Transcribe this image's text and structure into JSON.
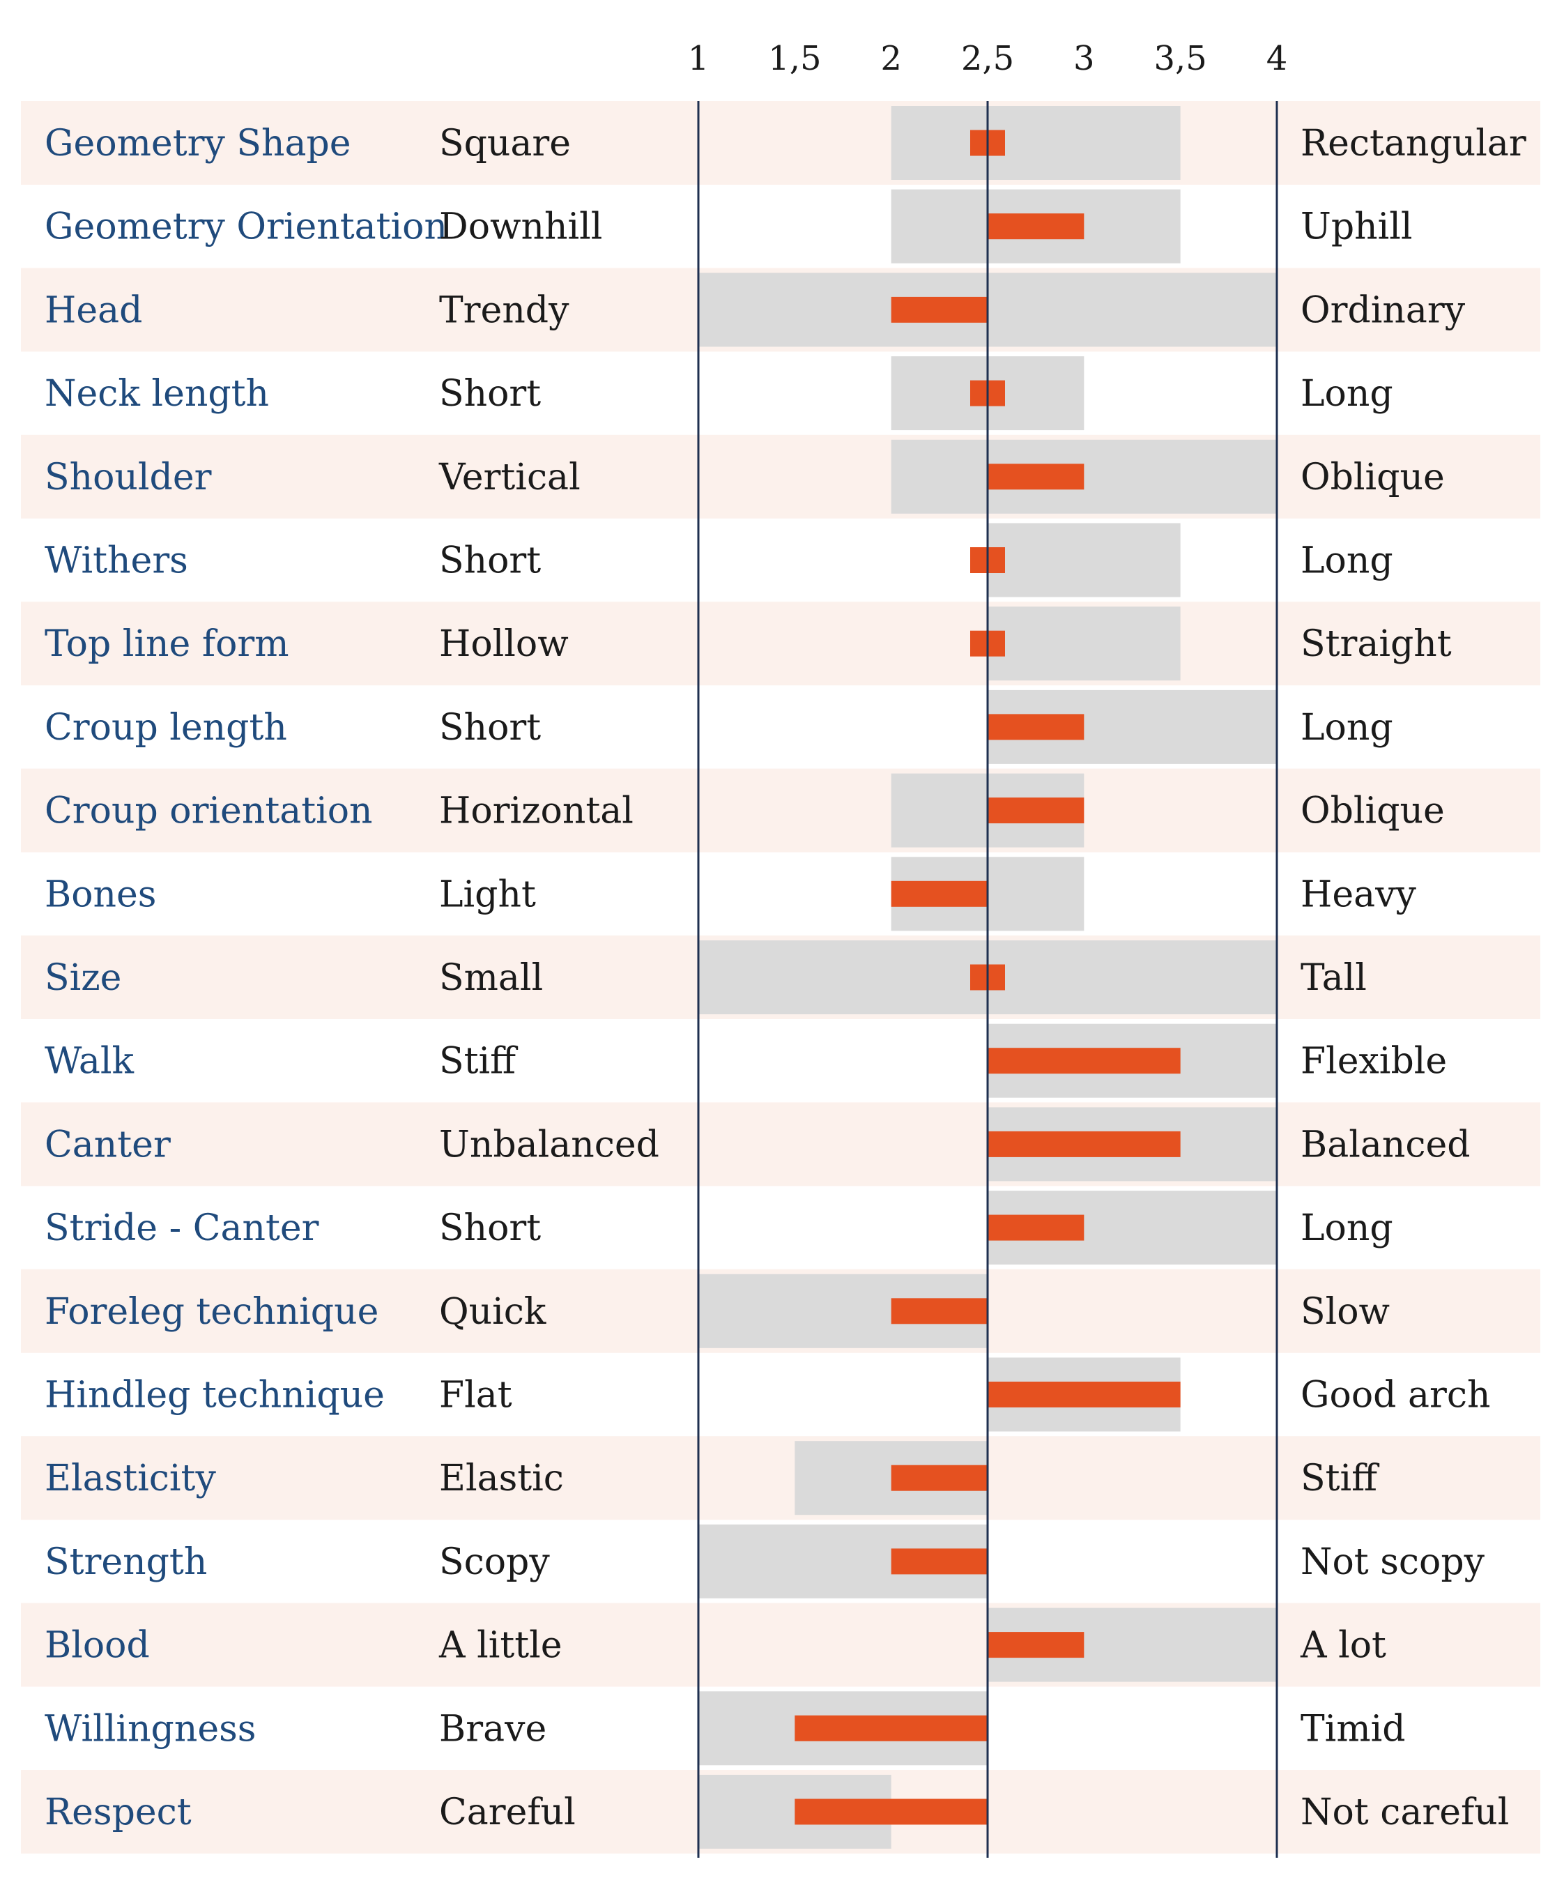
{
  "chart_data": {
    "type": "bar",
    "x_ticks": [
      "1",
      "1,5",
      "2",
      "2,5",
      "3",
      "3,5",
      "4"
    ],
    "xlim": [
      1,
      4
    ],
    "reference_value": 2.5,
    "grid": false,
    "colors": {
      "band_alt": "#fcf1ec",
      "range": "#dadada",
      "value_bar": "#e55120",
      "axis_line": "#1f3050",
      "trait_text": "#1f4a7c",
      "pole_text": "#1a1a1a"
    },
    "rows": [
      {
        "trait": "Geometry Shape",
        "low": "Square",
        "high": "Rectangular",
        "range": [
          2,
          3.5
        ],
        "value": 2.5
      },
      {
        "trait": "Geometry Orientation",
        "low": "Downhill",
        "high": "Uphill",
        "range": [
          2,
          3.5
        ],
        "value": 3
      },
      {
        "trait": "Head",
        "low": "Trendy",
        "high": "Ordinary",
        "range": [
          1,
          4
        ],
        "value": 2
      },
      {
        "trait": "Neck length",
        "low": "Short",
        "high": "Long",
        "range": [
          2,
          3
        ],
        "value": 2.5
      },
      {
        "trait": "Shoulder",
        "low": "Vertical",
        "high": "Oblique",
        "range": [
          2,
          4
        ],
        "value": 3
      },
      {
        "trait": "Withers",
        "low": "Short",
        "high": "Long",
        "range": [
          2.5,
          3.5
        ],
        "value": 2.5
      },
      {
        "trait": "Top line form",
        "low": "Hollow",
        "high": "Straight",
        "range": [
          2.5,
          3.5
        ],
        "value": 2.5
      },
      {
        "trait": "Croup length",
        "low": "Short",
        "high": "Long",
        "range": [
          2.5,
          4
        ],
        "value": 3
      },
      {
        "trait": "Croup orientation",
        "low": "Horizontal",
        "high": "Oblique",
        "range": [
          2,
          3
        ],
        "value": 3
      },
      {
        "trait": "Bones",
        "low": "Light",
        "high": "Heavy",
        "range": [
          2,
          3
        ],
        "value": 2
      },
      {
        "trait": "Size",
        "low": "Small",
        "high": "Tall",
        "range": [
          1,
          4
        ],
        "value": 2.5
      },
      {
        "trait": "Walk",
        "low": "Stiff",
        "high": "Flexible",
        "range": [
          2.5,
          4
        ],
        "value": 3.5
      },
      {
        "trait": "Canter",
        "low": "Unbalanced",
        "high": "Balanced",
        "range": [
          2.5,
          4
        ],
        "value": 3.5
      },
      {
        "trait": "Stride - Canter",
        "low": "Short",
        "high": "Long",
        "range": [
          2.5,
          4
        ],
        "value": 3
      },
      {
        "trait": "Foreleg technique",
        "low": "Quick",
        "high": "Slow",
        "range": [
          1,
          2.5
        ],
        "value": 2
      },
      {
        "trait": "Hindleg technique",
        "low": "Flat",
        "high": "Good arch",
        "range": [
          2.5,
          3.5
        ],
        "value": 3.5
      },
      {
        "trait": "Elasticity",
        "low": "Elastic",
        "high": "Stiff",
        "range": [
          1.5,
          2.5
        ],
        "value": 2
      },
      {
        "trait": "Strength",
        "low": "Scopy",
        "high": "Not scopy",
        "range": [
          1,
          2.5
        ],
        "value": 2
      },
      {
        "trait": "Blood",
        "low": "A little",
        "high": "A lot",
        "range": [
          2.5,
          4
        ],
        "value": 3
      },
      {
        "trait": "Willingness",
        "low": "Brave",
        "high": "Timid",
        "range": [
          1,
          2.5
        ],
        "value": 1.5
      },
      {
        "trait": "Respect",
        "low": "Careful",
        "high": "Not careful",
        "range": [
          1,
          2
        ],
        "value": 1.5
      }
    ]
  }
}
